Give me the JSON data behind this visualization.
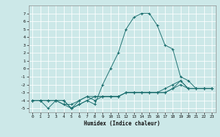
{
  "xlabel": "Humidex (Indice chaleur)",
  "ylabel": "",
  "background_color": "#cce8e8",
  "grid_color": "#ffffff",
  "line_color": "#1a6e6e",
  "xlim": [
    -0.5,
    23.5
  ],
  "ylim": [
    -5.5,
    8.0
  ],
  "xticks": [
    0,
    1,
    2,
    3,
    4,
    5,
    6,
    7,
    8,
    9,
    10,
    11,
    12,
    13,
    14,
    15,
    16,
    17,
    18,
    19,
    20,
    21,
    22,
    23
  ],
  "yticks": [
    -5,
    -4,
    -3,
    -2,
    -1,
    0,
    1,
    2,
    3,
    4,
    5,
    6,
    7
  ],
  "series": [
    {
      "x": [
        0,
        1,
        2,
        3,
        4,
        5,
        6,
        7,
        8,
        9,
        10,
        11,
        12,
        13,
        14,
        15,
        16,
        17,
        18,
        19,
        20,
        21,
        22,
        23
      ],
      "y": [
        -4,
        -4,
        -5,
        -4,
        -4,
        -5,
        -4.5,
        -4,
        -4.5,
        -2,
        0,
        2,
        5,
        6.5,
        7,
        7,
        5.5,
        3,
        2.5,
        -1,
        -1.5,
        -2.5,
        -2.5,
        -2.5
      ]
    },
    {
      "x": [
        0,
        1,
        2,
        3,
        4,
        5,
        6,
        7,
        8,
        9,
        10,
        11,
        12,
        13,
        14,
        15,
        16,
        17,
        18,
        19,
        20,
        21,
        22,
        23
      ],
      "y": [
        -4,
        -4,
        -4,
        -4,
        -4.5,
        -5,
        -4.5,
        -4,
        -3.5,
        -3.5,
        -3.5,
        -3.5,
        -3,
        -3,
        -3,
        -3,
        -3,
        -2.5,
        -2,
        -1.5,
        -2.5,
        -2.5,
        -2.5,
        -2.5
      ]
    },
    {
      "x": [
        0,
        1,
        2,
        3,
        4,
        5,
        6,
        7,
        8,
        9,
        10,
        11,
        12,
        13,
        14,
        15,
        16,
        17,
        18,
        19,
        20,
        21,
        22,
        23
      ],
      "y": [
        -4,
        -4,
        -4,
        -4,
        -4,
        -5,
        -4,
        -3.5,
        -4,
        -3.5,
        -3.5,
        -3.5,
        -3,
        -3,
        -3,
        -3,
        -3,
        -3,
        -2.5,
        -1.5,
        -2.5,
        -2.5,
        -2.5,
        -2.5
      ]
    },
    {
      "x": [
        0,
        1,
        2,
        3,
        4,
        5,
        6,
        7,
        8,
        9,
        10,
        11,
        12,
        13,
        14,
        15,
        16,
        17,
        18,
        19,
        20,
        21,
        22,
        23
      ],
      "y": [
        -4,
        -4,
        -4,
        -4,
        -4.5,
        -4.5,
        -4,
        -3.5,
        -3.5,
        -3.5,
        -3.5,
        -3.5,
        -3,
        -3,
        -3,
        -3,
        -3,
        -3,
        -2.5,
        -2,
        -2.5,
        -2.5,
        -2.5,
        -2.5
      ]
    }
  ]
}
